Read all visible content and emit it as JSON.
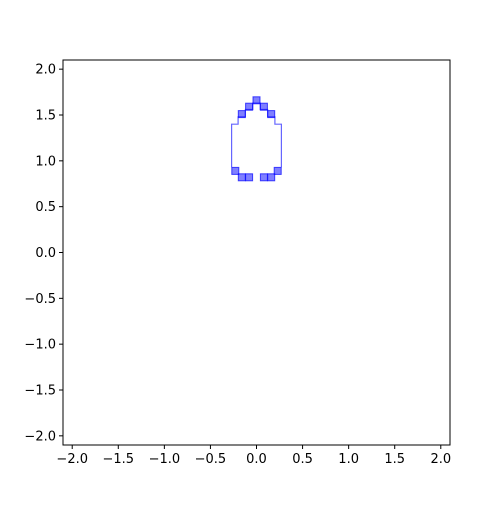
{
  "chart_data": {
    "type": "scatter",
    "title": "",
    "xlabel": "",
    "ylabel": "",
    "xlim": [
      -2.1,
      2.1
    ],
    "ylim": [
      -2.1,
      2.1
    ],
    "grid": false,
    "x_ticks": [
      -2.0,
      -1.5,
      -1.0,
      -0.5,
      0.0,
      0.5,
      1.0,
      1.5,
      2.0
    ],
    "y_ticks": [
      -2.0,
      -1.5,
      -1.0,
      -0.5,
      0.0,
      0.5,
      1.0,
      1.5,
      2.0
    ],
    "x_tick_labels": [
      "−2.0",
      "−1.5",
      "−1.0",
      "−0.5",
      "0.0",
      "0.5",
      "1.0",
      "1.5",
      "2.0"
    ],
    "y_tick_labels": [
      "−2.0",
      "−1.5",
      "−1.0",
      "−0.5",
      "0.0",
      "0.5",
      "1.0",
      "1.5",
      "2.0"
    ],
    "marker_color": "#0000ff",
    "marker_alpha": 0.5,
    "outline_color": "#6666ff",
    "markers": [
      {
        "x": -0.23,
        "y": 0.89
      },
      {
        "x": -0.16,
        "y": 0.82
      },
      {
        "x": -0.08,
        "y": 0.82
      },
      {
        "x": 0.08,
        "y": 0.82
      },
      {
        "x": 0.16,
        "y": 0.82
      },
      {
        "x": 0.23,
        "y": 0.89
      },
      {
        "x": -0.16,
        "y": 1.51
      },
      {
        "x": -0.08,
        "y": 1.59
      },
      {
        "x": 0.0,
        "y": 1.66
      },
      {
        "x": 0.08,
        "y": 1.59
      },
      {
        "x": 0.16,
        "y": 1.51
      }
    ],
    "outline": [
      [
        -0.27,
        0.93
      ],
      [
        -0.27,
        1.4
      ],
      [
        -0.2,
        1.4
      ],
      [
        -0.2,
        1.48
      ],
      [
        -0.12,
        1.48
      ],
      [
        -0.12,
        1.56
      ],
      [
        -0.04,
        1.56
      ],
      [
        -0.04,
        1.63
      ],
      [
        0.04,
        1.63
      ],
      [
        0.04,
        1.56
      ],
      [
        0.12,
        1.56
      ],
      [
        0.12,
        1.48
      ],
      [
        0.2,
        1.48
      ],
      [
        0.2,
        1.4
      ],
      [
        0.27,
        1.4
      ],
      [
        0.27,
        0.93
      ]
    ]
  }
}
